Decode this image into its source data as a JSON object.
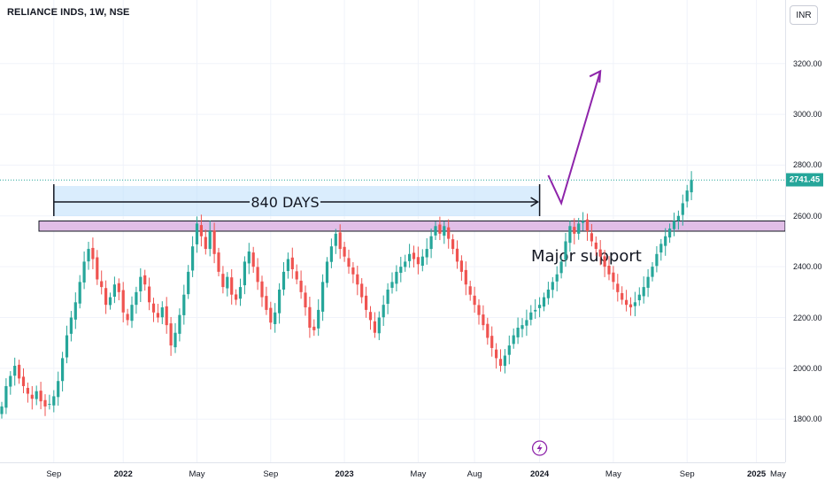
{
  "header": {
    "symbol_title": "RELIANCE INDS, 1W, NSE",
    "currency": "INR"
  },
  "colors": {
    "up": "#26a69a",
    "down": "#ef5350",
    "projection": "#8e24aa",
    "support_band": "#e1bee7",
    "range_box": "#bbdefb"
  },
  "current_price": "2741.45",
  "annotations": {
    "duration_label": "840 DAYS",
    "support_label": "Major support"
  },
  "icons": {
    "event_marker": "lightning-icon"
  },
  "chart_data": {
    "type": "candlestick",
    "title": "RELIANCE INDS, 1W, NSE",
    "ylim": [
      1630,
      3450
    ],
    "y_ticks": [
      "1800.00",
      "2000.00",
      "2200.00",
      "2400.00",
      "2600.00",
      "2800.00",
      "3000.00",
      "3200.00"
    ],
    "x_ticks": [
      "Sep",
      "2022",
      "May",
      "Sep",
      "2023",
      "May",
      "Aug",
      "2024",
      "May",
      "Sep",
      "2025",
      "May"
    ],
    "x_tick_weeks": [
      -4,
      12,
      29,
      46,
      63,
      80,
      93,
      108,
      125,
      142,
      158,
      175
    ],
    "last_price": 2741.45,
    "support_zone": [
      2540,
      2580
    ],
    "range_start_week": -4,
    "range_end_week": 108,
    "projection": [
      [
        110,
        2760
      ],
      [
        113,
        2650
      ],
      [
        122,
        3170
      ]
    ],
    "closes": [
      1850,
      1930,
      1970,
      2010,
      1960,
      1930,
      1900,
      1880,
      1910,
      1870,
      1850,
      1860,
      1890,
      1950,
      2040,
      2130,
      2200,
      2260,
      2340,
      2420,
      2470,
      2430,
      2350,
      2320,
      2250,
      2280,
      2330,
      2300,
      2220,
      2190,
      2250,
      2300,
      2360,
      2330,
      2260,
      2220,
      2200,
      2240,
      2170,
      2090,
      2140,
      2210,
      2290,
      2380,
      2480,
      2570,
      2520,
      2470,
      2540,
      2450,
      2380,
      2320,
      2360,
      2290,
      2270,
      2320,
      2420,
      2460,
      2400,
      2340,
      2280,
      2230,
      2180,
      2220,
      2310,
      2380,
      2430,
      2390,
      2350,
      2300,
      2240,
      2160,
      2150,
      2230,
      2340,
      2420,
      2480,
      2530,
      2470,
      2440,
      2400,
      2370,
      2330,
      2280,
      2230,
      2190,
      2140,
      2200,
      2250,
      2310,
      2340,
      2380,
      2400,
      2420,
      2450,
      2430,
      2410,
      2440,
      2470,
      2520,
      2560,
      2530,
      2560,
      2510,
      2470,
      2420,
      2380,
      2330,
      2290,
      2250,
      2210,
      2170,
      2120,
      2080,
      2040,
      2010,
      2050,
      2090,
      2130,
      2160,
      2170,
      2190,
      2220,
      2230,
      2250,
      2280,
      2310,
      2340,
      2370,
      2420,
      2500,
      2560,
      2530,
      2570,
      2580,
      2540,
      2500,
      2470,
      2440,
      2400,
      2370,
      2340,
      2300,
      2270,
      2250,
      2240,
      2260,
      2290,
      2320,
      2360,
      2400,
      2450,
      2490,
      2520,
      2550,
      2580,
      2600,
      2650,
      2700,
      2741.45
    ]
  }
}
